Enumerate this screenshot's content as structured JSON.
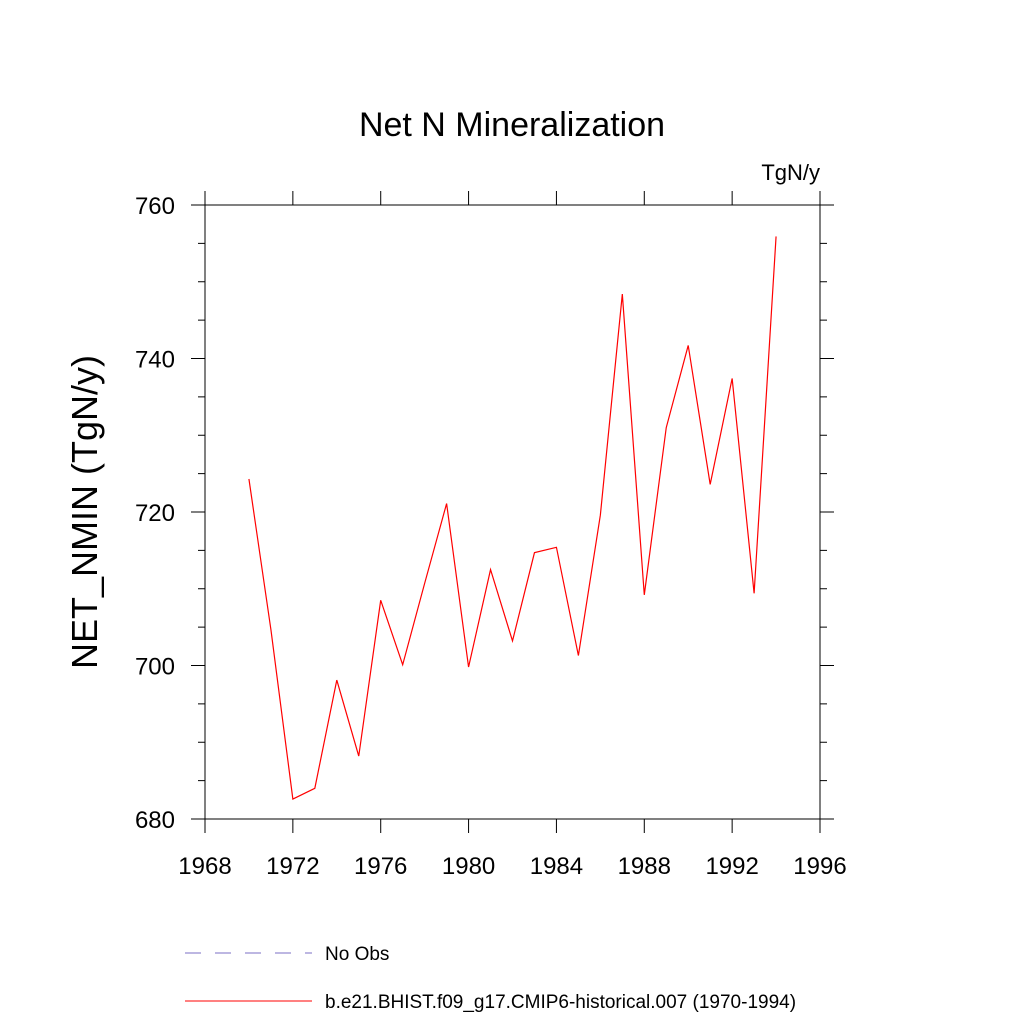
{
  "chart_data": {
    "type": "line",
    "title": "Net N Mineralization",
    "units": "TgN/y",
    "xlabel": "",
    "ylabel": "NET_NMIN  (TgN/y)",
    "xlim": [
      1968,
      1996
    ],
    "ylim": [
      680,
      760
    ],
    "x_ticks": [
      "1968",
      "1972",
      "1976",
      "1980",
      "1984",
      "1988",
      "1992",
      "1996"
    ],
    "y_ticks": [
      "680",
      "700",
      "720",
      "740",
      "760"
    ],
    "grid": false,
    "legend_position": "bottom",
    "series": [
      {
        "name": "No Obs",
        "color": "#7b6fc6",
        "style": "dashed",
        "x": [],
        "values": []
      },
      {
        "name": "b.e21.BHIST.f09_g17.CMIP6-historical.007 (1970-1994)",
        "color": "#ff0000",
        "style": "solid",
        "x": [
          1970,
          1971,
          1972,
          1973,
          1974,
          1975,
          1976,
          1977,
          1978,
          1979,
          1980,
          1981,
          1982,
          1983,
          1984,
          1985,
          1986,
          1987,
          1988,
          1989,
          1990,
          1991,
          1992,
          1993,
          1994
        ],
        "values": [
          724.3,
          704.7,
          682.6,
          684.0,
          698.1,
          688.2,
          708.5,
          700.1,
          710.7,
          721.1,
          699.8,
          712.5,
          703.2,
          714.7,
          715.4,
          701.3,
          719.6,
          748.4,
          709.2,
          731.0,
          741.7,
          723.6,
          737.4,
          709.4,
          755.9
        ]
      }
    ]
  }
}
